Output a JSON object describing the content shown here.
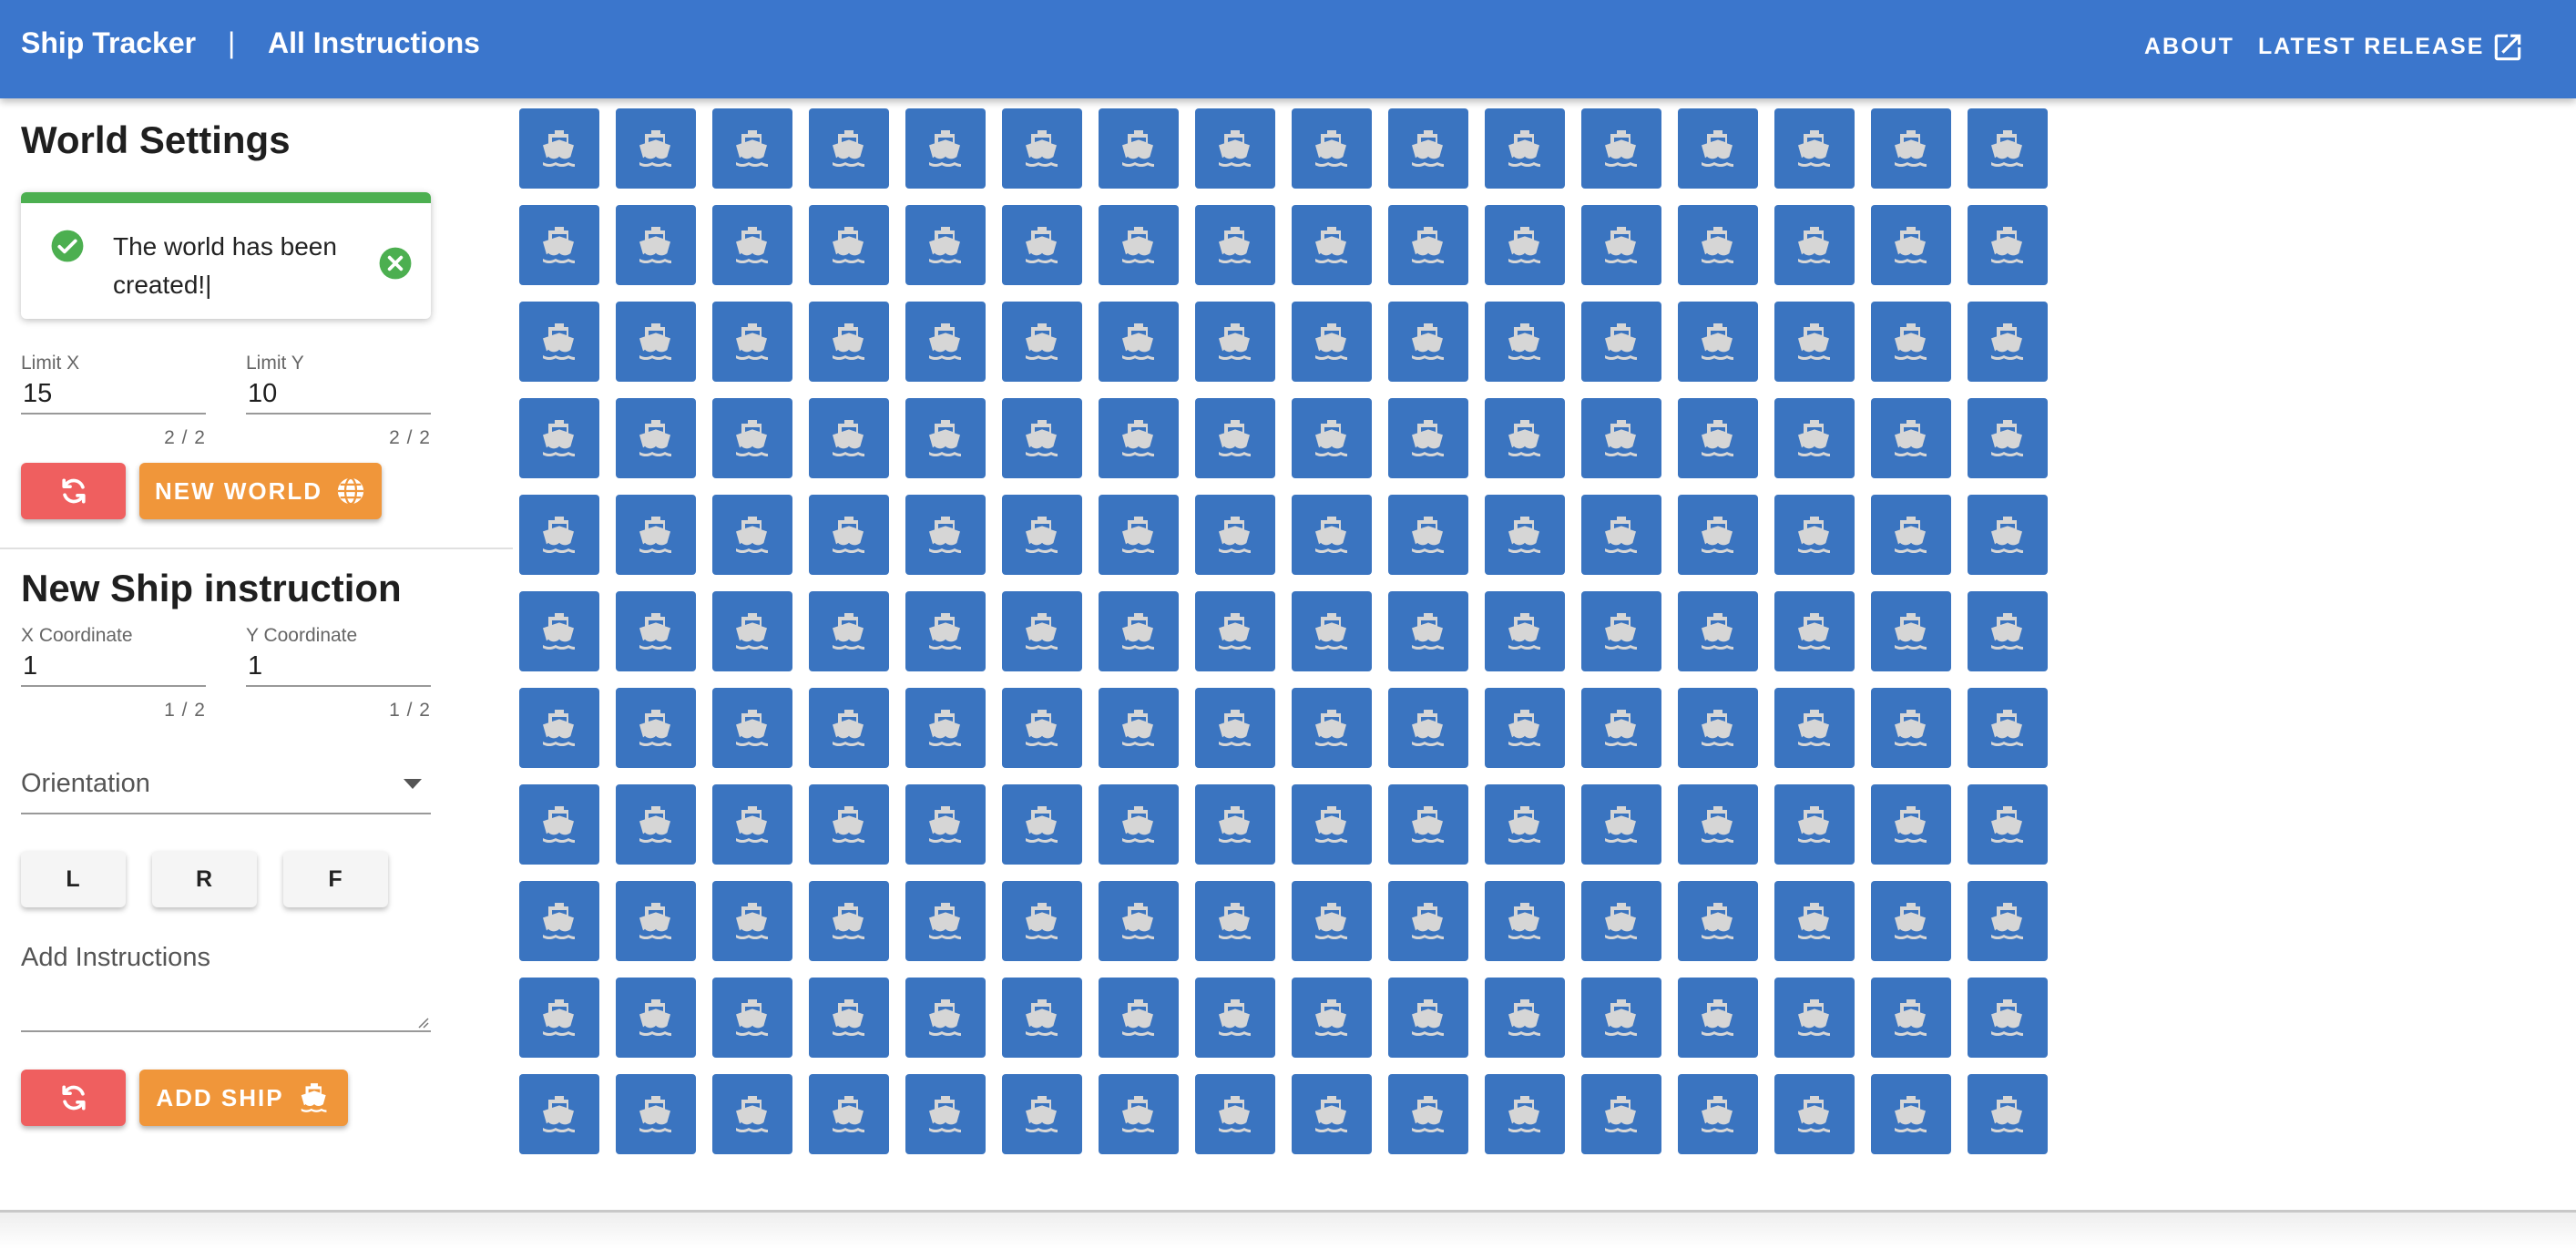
{
  "header": {
    "brand": "Ship Tracker",
    "separator": "|",
    "title": "All Instructions",
    "nav": {
      "about": "ABOUT",
      "latest_release": "LATEST RELEASE"
    },
    "external_link_icon": "open-in-new-icon"
  },
  "world_settings": {
    "title": "World Settings",
    "alert": {
      "message": "The world has been created!|",
      "status_icon": "check-circle-icon",
      "close_icon": "close-circle-icon"
    },
    "limit_x": {
      "label": "Limit X",
      "value": "15",
      "counter": "2 / 2"
    },
    "limit_y": {
      "label": "Limit Y",
      "value": "10",
      "counter": "2 / 2"
    },
    "reset_icon": "refresh-icon",
    "new_world_label": "NEW WORLD",
    "new_world_icon": "globe-icon"
  },
  "ship_instruction": {
    "title": "New Ship instruction",
    "x_coordinate": {
      "label": "X Coordinate",
      "value": "1",
      "counter": "1 / 2"
    },
    "y_coordinate": {
      "label": "Y Coordinate",
      "value": "1",
      "counter": "1 / 2"
    },
    "orientation": {
      "label": "Orientation"
    },
    "command_buttons": [
      "L",
      "R",
      "F"
    ],
    "instructions": {
      "placeholder": "Add Instructions",
      "value": ""
    },
    "reset_icon": "refresh-icon",
    "add_ship_label": "ADD SHIP",
    "add_ship_icon": "ship-icon"
  },
  "world_grid": {
    "columns": 16,
    "rows": 11,
    "cell_icon": "ship-icon",
    "colors": {
      "cell": "#3a74c0",
      "icon": "#d6d6d6"
    }
  },
  "colors": {
    "appbar": "#3b76cc",
    "success": "#4caf50",
    "danger": "#ef5f5f",
    "accent": "#f0963a"
  }
}
